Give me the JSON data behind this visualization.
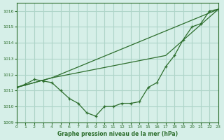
{
  "title": "Graphe pression niveau de la mer (hPa)",
  "background_color": "#d6efe8",
  "grid_color": "#aed4c8",
  "line_color": "#2d6e2d",
  "xlim": [
    0,
    23
  ],
  "ylim": [
    1009,
    1016.5
  ],
  "yticks": [
    1009,
    1010,
    1011,
    1012,
    1013,
    1014,
    1015,
    1016
  ],
  "xticks": [
    0,
    1,
    2,
    3,
    4,
    5,
    6,
    7,
    8,
    9,
    10,
    11,
    12,
    13,
    14,
    15,
    16,
    17,
    18,
    19,
    20,
    21,
    22,
    23
  ],
  "line1_x": [
    0,
    1,
    2,
    3,
    4,
    5,
    6,
    7,
    8,
    9,
    10,
    11,
    12,
    13,
    14,
    15,
    16,
    17,
    18,
    19,
    20,
    21,
    22,
    23
  ],
  "line1_y": [
    1011.2,
    1011.4,
    1011.7,
    1011.6,
    1011.5,
    1011.0,
    1010.5,
    1010.2,
    1009.6,
    1009.4,
    1010.0,
    1010.0,
    1010.2,
    1010.2,
    1010.3,
    1011.2,
    1011.5,
    1012.5,
    1013.2,
    1014.2,
    1015.0,
    1015.2,
    1016.0,
    1016.1
  ],
  "line2_x": [
    0,
    4,
    23
  ],
  "line2_y": [
    1011.2,
    1011.8,
    1016.1
  ],
  "line3_x": [
    0,
    4,
    17,
    23
  ],
  "line3_y": [
    1011.2,
    1011.8,
    1013.2,
    1016.1
  ]
}
